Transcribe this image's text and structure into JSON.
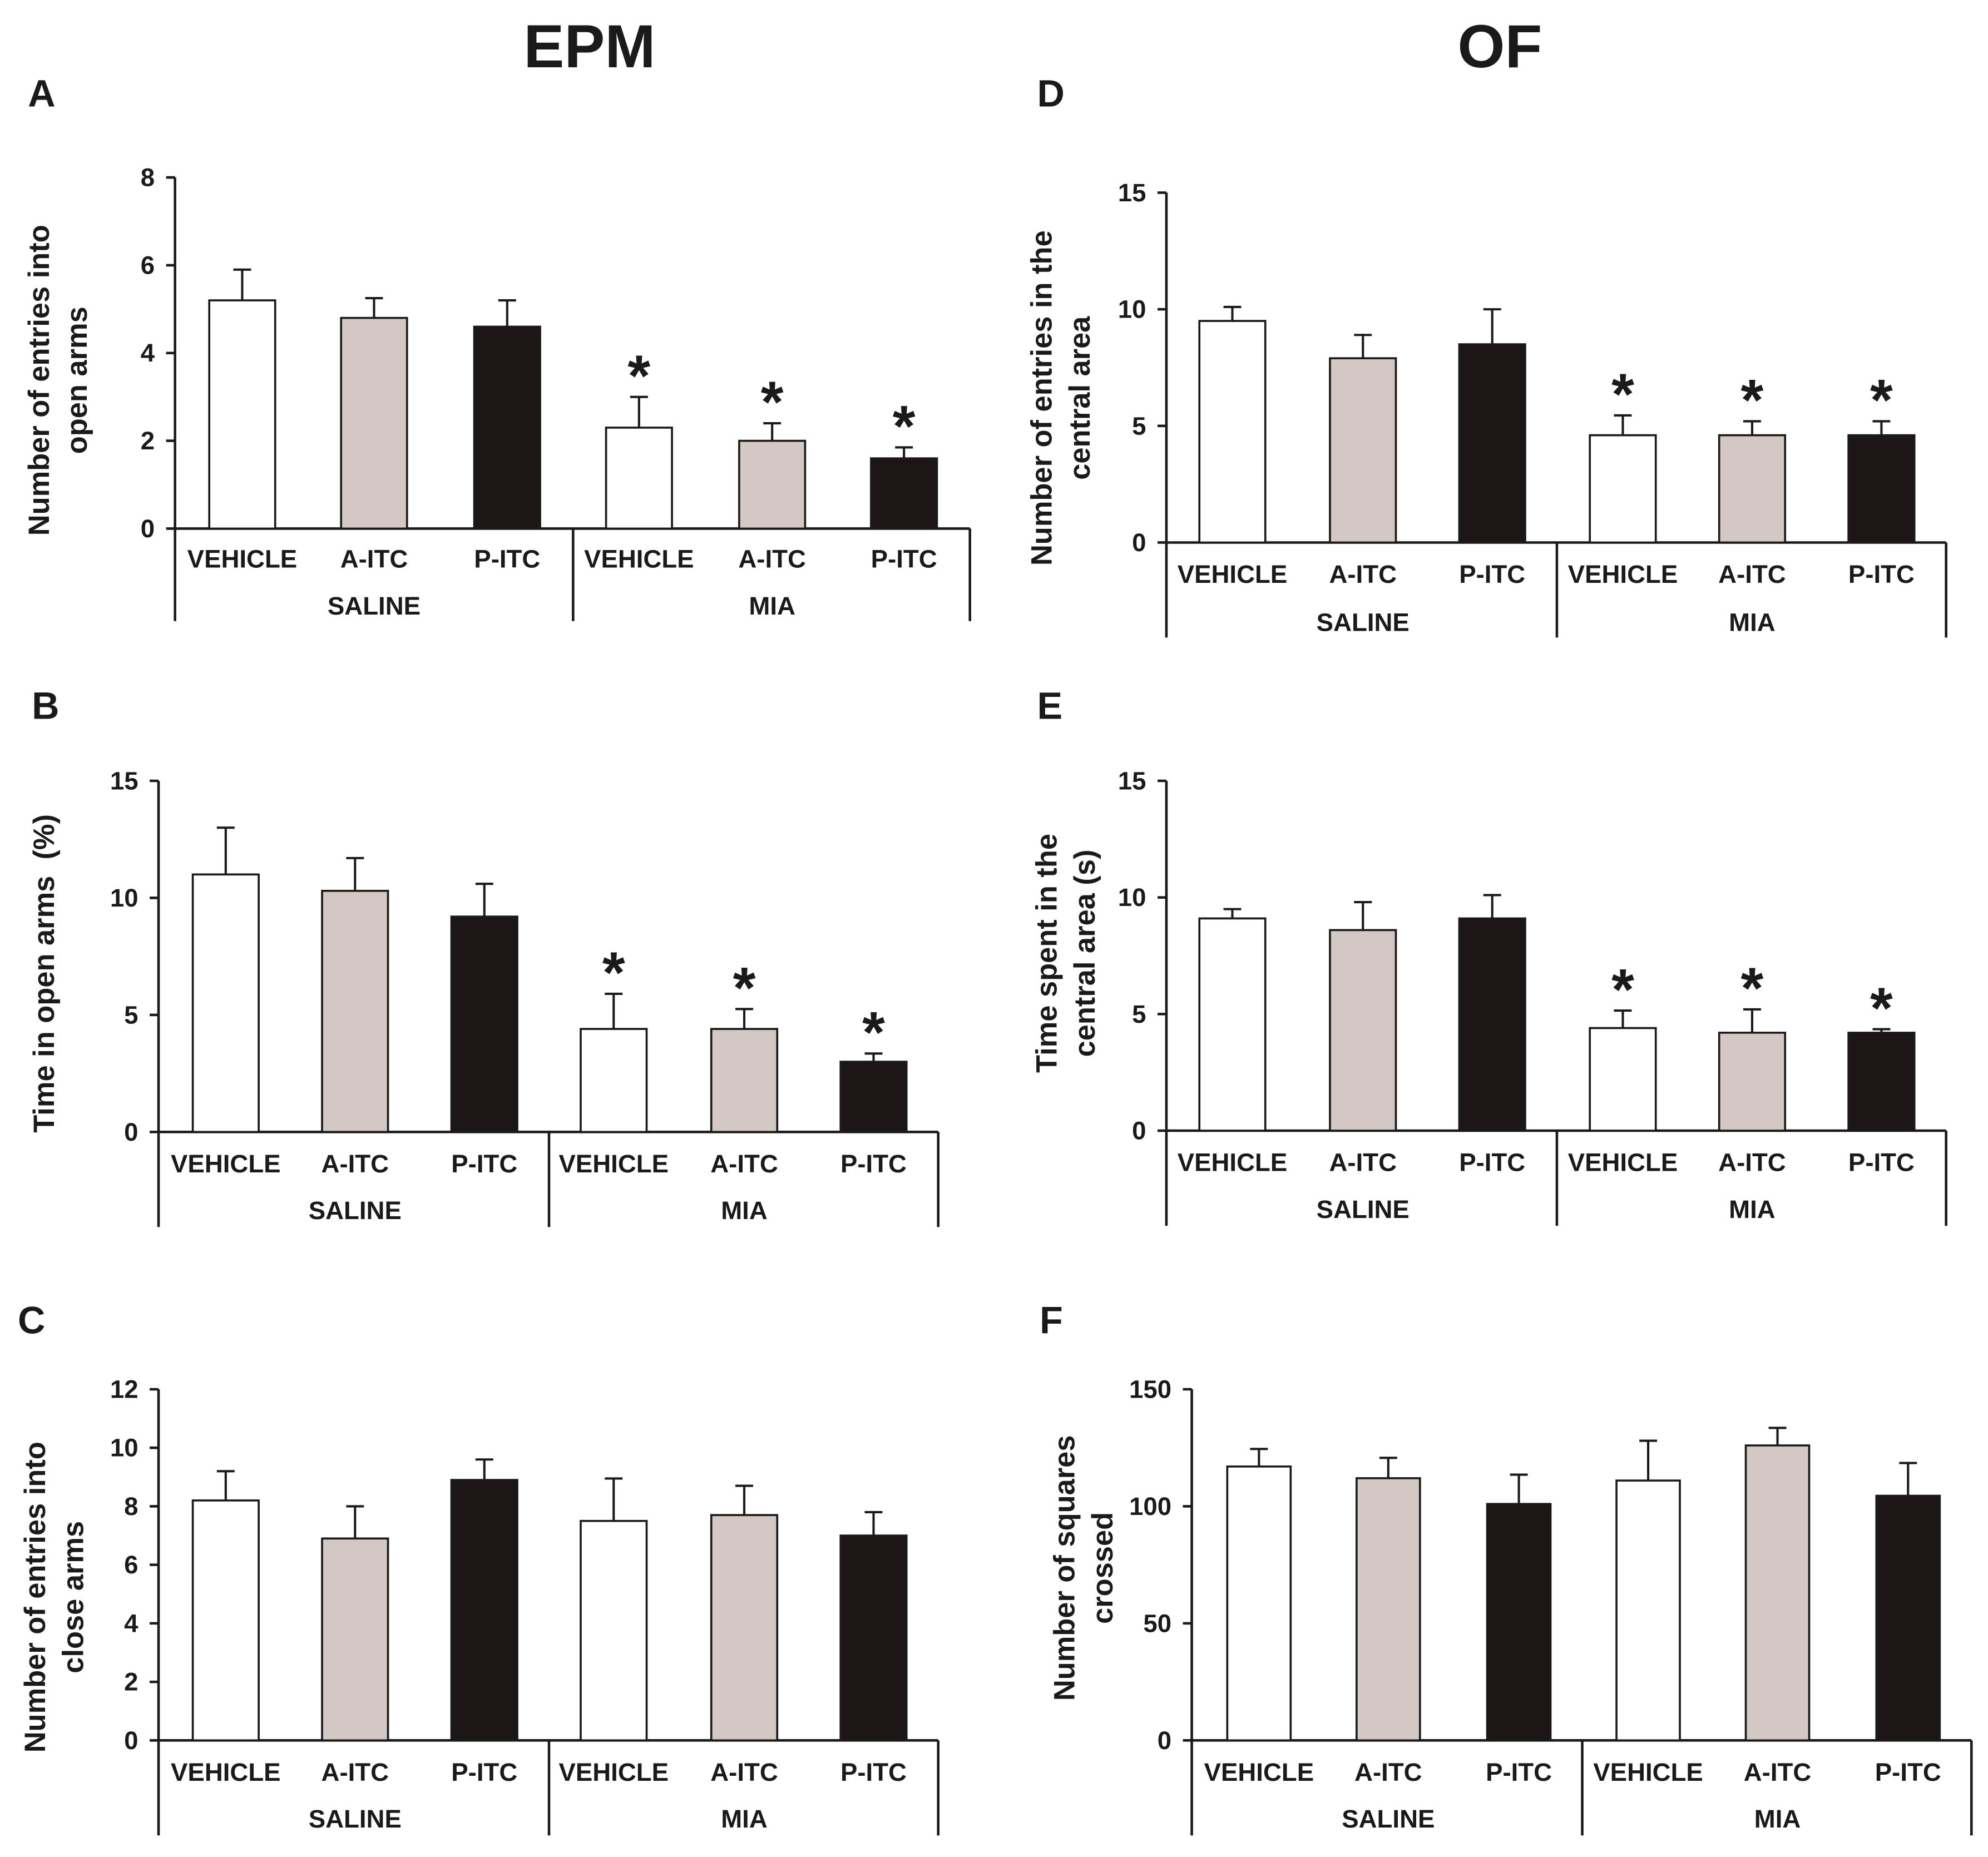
{
  "titles": {
    "epm": "EPM",
    "of": "OF"
  },
  "colors": {
    "vehicle": "#ffffff",
    "a_itc": "#d4c8c5",
    "p_itc": "#1d1617",
    "ink": "#1a1a1a"
  },
  "chart_data": [
    {
      "panel": "A",
      "type": "bar",
      "ylabel": [
        "Number of entries into",
        "open arms"
      ],
      "ylim": [
        0,
        8
      ],
      "yticks": [
        0,
        2,
        4,
        6,
        8
      ],
      "groups": [
        "SALINE",
        "MIA"
      ],
      "categories": [
        "VEHICLE",
        "A-ITC",
        "P-ITC",
        "VEHICLE",
        "A-ITC",
        "P-ITC"
      ],
      "values": [
        5.2,
        4.8,
        4.6,
        2.3,
        2.0,
        1.6
      ],
      "errors": [
        0.7,
        0.45,
        0.6,
        0.7,
        0.4,
        0.25
      ],
      "significant": [
        false,
        false,
        false,
        true,
        true,
        true
      ],
      "significance_marker": "*"
    },
    {
      "panel": "B",
      "type": "bar",
      "ylabel": [
        "Time in open arms  (%)"
      ],
      "ylim": [
        0,
        15
      ],
      "yticks": [
        0,
        5,
        10,
        15
      ],
      "groups": [
        "SALINE",
        "MIA"
      ],
      "categories": [
        "VEHICLE",
        "A-ITC",
        "P-ITC",
        "VEHICLE",
        "A-ITC",
        "P-ITC"
      ],
      "values": [
        11.0,
        10.3,
        9.2,
        4.4,
        4.4,
        3.0
      ],
      "errors": [
        2.0,
        1.4,
        1.4,
        1.5,
        0.85,
        0.35
      ],
      "significant": [
        false,
        false,
        false,
        true,
        true,
        true
      ],
      "significance_marker": "*"
    },
    {
      "panel": "C",
      "type": "bar",
      "ylabel": [
        "Number of entries into",
        "close arms"
      ],
      "ylim": [
        0,
        12
      ],
      "yticks": [
        0,
        2,
        4,
        6,
        8,
        10,
        12
      ],
      "groups": [
        "SALINE",
        "MIA"
      ],
      "categories": [
        "VEHICLE",
        "A-ITC",
        "P-ITC",
        "VEHICLE",
        "A-ITC",
        "P-ITC"
      ],
      "values": [
        8.2,
        6.9,
        8.9,
        7.5,
        7.7,
        7.0
      ],
      "errors": [
        1.0,
        1.1,
        0.7,
        1.45,
        1.0,
        0.8
      ],
      "significant": [
        false,
        false,
        false,
        false,
        false,
        false
      ]
    },
    {
      "panel": "D",
      "type": "bar",
      "ylabel": [
        "Number of entries in the",
        "central area"
      ],
      "ylim": [
        0,
        15
      ],
      "yticks": [
        0,
        5,
        10,
        15
      ],
      "groups": [
        "SALINE",
        "MIA"
      ],
      "categories": [
        "VEHICLE",
        "A-ITC",
        "P-ITC",
        "VEHICLE",
        "A-ITC",
        "P-ITC"
      ],
      "values": [
        9.5,
        7.9,
        8.5,
        4.6,
        4.6,
        4.6
      ],
      "errors": [
        0.6,
        1.0,
        1.5,
        0.85,
        0.6,
        0.6
      ],
      "significant": [
        false,
        false,
        false,
        true,
        true,
        true
      ],
      "significance_marker": "*"
    },
    {
      "panel": "E",
      "type": "bar",
      "ylabel": [
        "Time spent in the",
        "central area (s)"
      ],
      "ylim": [
        0,
        15
      ],
      "yticks": [
        0,
        5,
        10,
        15
      ],
      "groups": [
        "SALINE",
        "MIA"
      ],
      "categories": [
        "VEHICLE",
        "A-ITC",
        "P-ITC",
        "VEHICLE",
        "A-ITC",
        "P-ITC"
      ],
      "values": [
        9.1,
        8.6,
        9.1,
        4.4,
        4.2,
        4.2
      ],
      "errors": [
        0.4,
        1.2,
        1.0,
        0.75,
        1.0,
        0.15
      ],
      "significant": [
        false,
        false,
        false,
        true,
        true,
        true
      ],
      "significance_marker": "*"
    },
    {
      "panel": "F",
      "type": "bar",
      "ylabel": [
        "Number of squares",
        "crossed"
      ],
      "ylim": [
        0,
        150
      ],
      "yticks": [
        0,
        50,
        100,
        150
      ],
      "groups": [
        "SALINE",
        "MIA"
      ],
      "categories": [
        "VEHICLE",
        "A-ITC",
        "P-ITC",
        "VEHICLE",
        "A-ITC",
        "P-ITC"
      ],
      "values": [
        117,
        112,
        101,
        111,
        126,
        104.5
      ],
      "errors": [
        7.5,
        8.7,
        12.5,
        17,
        7.5,
        14
      ],
      "significant": [
        false,
        false,
        false,
        false,
        false,
        false
      ]
    }
  ]
}
